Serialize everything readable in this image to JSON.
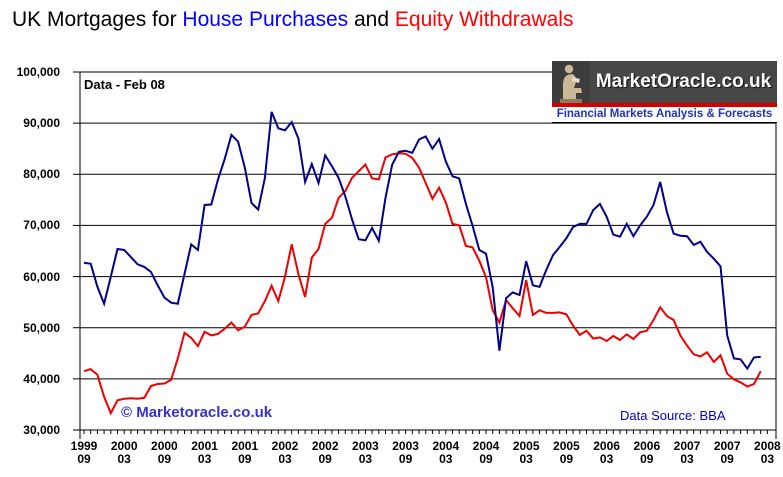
{
  "title": {
    "prefix": "UK Mortgages for ",
    "series1": "House Purchases",
    "joiner": " and ",
    "series2": "Equity Withdrawals"
  },
  "annotations": {
    "data_label": "Data - Feb 08",
    "watermark": "© Marketoracle.co.uk",
    "source": "Data Source: BBA"
  },
  "logo": {
    "name": "MarketOracle.co.uk",
    "tagline": "Financial Markets Analysis & Forecasts"
  },
  "colors": {
    "house_purchases": "#000088",
    "equity_withdrawals": "#ee0000",
    "title_blue": "#0000ff",
    "title_red": "#ff0000",
    "watermark_blue": "#3333cc",
    "source_blue": "#0000cc",
    "grid": "#000000"
  },
  "chart_data": {
    "type": "line",
    "title": "UK Mortgages for House Purchases and Equity Withdrawals",
    "xlabel": "",
    "ylabel": "",
    "frequency": "monthly",
    "x_start": "1999-09",
    "x_end": "2008-02",
    "grid": "horizontal",
    "legend_position": "in-title",
    "y_axis": {
      "min": 30000,
      "max": 100000,
      "step": 10000,
      "tick_labels": [
        "30,000",
        "40,000",
        "50,000",
        "60,000",
        "70,000",
        "80,000",
        "90,000",
        "100,000"
      ]
    },
    "x_axis": {
      "tick_every_months": 6,
      "tick_labels": [
        {
          "year": "1999",
          "month": "09"
        },
        {
          "year": "2000",
          "month": "03"
        },
        {
          "year": "2000",
          "month": "09"
        },
        {
          "year": "2001",
          "month": "03"
        },
        {
          "year": "2001",
          "month": "09"
        },
        {
          "year": "2002",
          "month": "03"
        },
        {
          "year": "2002",
          "month": "09"
        },
        {
          "year": "2003",
          "month": "03"
        },
        {
          "year": "2003",
          "month": "09"
        },
        {
          "year": "2004",
          "month": "03"
        },
        {
          "year": "2004",
          "month": "09"
        },
        {
          "year": "2005",
          "month": "03"
        },
        {
          "year": "2005",
          "month": "09"
        },
        {
          "year": "2006",
          "month": "03"
        },
        {
          "year": "2006",
          "month": "09"
        },
        {
          "year": "2007",
          "month": "03"
        },
        {
          "year": "2007",
          "month": "09"
        },
        {
          "year": "2008",
          "month": "03"
        }
      ]
    },
    "series": [
      {
        "name": "House Purchases",
        "color": "#000088",
        "values": [
          62700,
          62500,
          58000,
          54700,
          60000,
          65400,
          65200,
          63800,
          62400,
          61900,
          60900,
          58300,
          55900,
          54900,
          54700,
          60500,
          66300,
          65200,
          74000,
          74100,
          79000,
          83000,
          87700,
          86400,
          81300,
          74400,
          73100,
          79300,
          92200,
          89000,
          88600,
          90200,
          87000,
          78500,
          82000,
          78300,
          83700,
          81600,
          79300,
          75700,
          71200,
          67300,
          67100,
          69500,
          67000,
          75400,
          81900,
          84400,
          84600,
          84200,
          86800,
          87400,
          85000,
          86900,
          82500,
          79600,
          79200,
          74200,
          69900,
          65200,
          64500,
          57900,
          45500,
          55800,
          56900,
          56400,
          63000,
          58300,
          58000,
          61300,
          64200,
          65800,
          67500,
          69700,
          70300,
          70300,
          73000,
          74200,
          71700,
          68200,
          67800,
          70300,
          67900,
          70000,
          71700,
          74000,
          78500,
          72600,
          68400,
          68000,
          67900,
          66200,
          66800,
          64800,
          63500,
          62000,
          48500,
          44000,
          43800,
          42000,
          44200,
          44300
        ]
      },
      {
        "name": "Equity Withdrawals",
        "color": "#ee0000",
        "values": [
          41500,
          41900,
          40800,
          36500,
          33300,
          35800,
          36100,
          36200,
          36100,
          36300,
          38600,
          39000,
          39100,
          39800,
          44000,
          49000,
          48000,
          46400,
          49200,
          48500,
          48800,
          49800,
          51000,
          49500,
          50200,
          52500,
          52800,
          55200,
          58200,
          55200,
          60000,
          66300,
          60500,
          56000,
          63700,
          65400,
          70300,
          71500,
          75400,
          76700,
          79300,
          80600,
          81900,
          79200,
          79000,
          83300,
          83900,
          84100,
          84000,
          83200,
          81300,
          78300,
          75200,
          77400,
          74500,
          70300,
          70000,
          66000,
          65700,
          63100,
          59900,
          53400,
          51000,
          55400,
          53800,
          52300,
          59300,
          52500,
          53400,
          52900,
          52900,
          53000,
          52600,
          50400,
          48600,
          49400,
          47900,
          48100,
          47400,
          48400,
          47600,
          48700,
          47800,
          49100,
          49400,
          51500,
          54000,
          52300,
          51500,
          48500,
          46500,
          44800,
          44400,
          45200,
          43300,
          44600,
          41000,
          39900,
          39300,
          38500,
          39000,
          41500
        ]
      }
    ]
  }
}
